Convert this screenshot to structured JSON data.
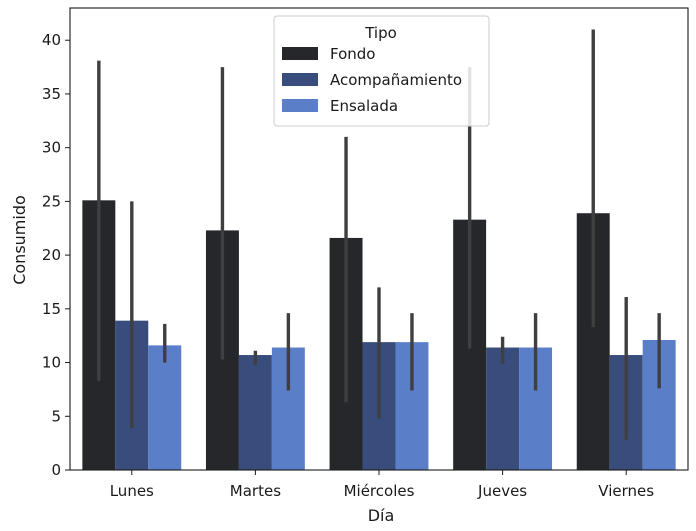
{
  "chart_data": {
    "type": "bar",
    "categories": [
      "Lunes",
      "Martes",
      "Miércoles",
      "Jueves",
      "Viernes"
    ],
    "xlabel": "Día",
    "ylabel": "Consumido",
    "ylim": [
      0,
      43
    ],
    "yticks": [
      0,
      5,
      10,
      15,
      20,
      25,
      30,
      35,
      40
    ],
    "grid": false,
    "legend": {
      "title": "Tipo",
      "placement": "top-center"
    },
    "series": [
      {
        "name": "Fondo",
        "color": "#26272b",
        "values": [
          25.1,
          22.3,
          21.6,
          23.3,
          23.9
        ],
        "error_low": [
          8.3,
          10.3,
          6.3,
          11.3,
          13.3
        ],
        "error_high": [
          38.1,
          37.5,
          31.0,
          37.5,
          41.0
        ]
      },
      {
        "name": "Acompañamiento",
        "color": "#384d7b",
        "values": [
          13.9,
          10.7,
          11.9,
          11.4,
          10.7
        ],
        "error_low": [
          3.9,
          9.8,
          4.8,
          9.9,
          2.8
        ],
        "error_high": [
          25.0,
          11.1,
          17.0,
          12.4,
          16.1
        ]
      },
      {
        "name": "Ensalada",
        "color": "#5a7fc8",
        "values": [
          11.6,
          11.4,
          11.9,
          11.4,
          12.1
        ],
        "error_low": [
          10.0,
          7.4,
          7.4,
          7.4,
          7.6
        ],
        "error_high": [
          13.6,
          14.6,
          14.6,
          14.6,
          14.6
        ]
      }
    ]
  }
}
